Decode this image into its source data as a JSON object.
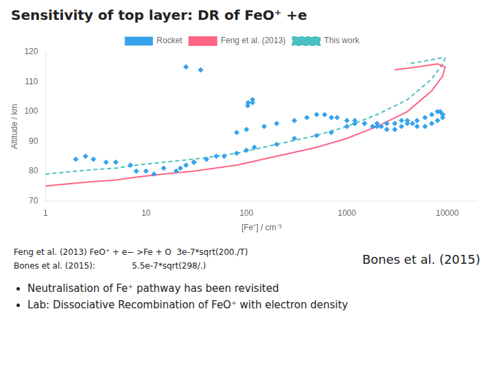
{
  "chart_data": {
    "type": "scatter",
    "title": "Sensitivity of top layer: DR of FeO⁺ +e",
    "x_label": "[Fe⁺] / cm⁻³",
    "y_label": "Altitude / km",
    "log": "x",
    "xlim": [
      1,
      20000
    ],
    "xticks": [
      1,
      10,
      100,
      1000,
      10000
    ],
    "ylim": [
      70,
      120
    ],
    "yticks": [
      70,
      80,
      90,
      100,
      110,
      120
    ],
    "grid": false,
    "legend": "top",
    "series": [
      {
        "name": "Rocket",
        "type": "scatter",
        "marker": "diamond",
        "x": [
          2,
          2.5,
          3,
          4,
          5,
          7,
          8,
          10,
          12,
          15,
          20,
          22,
          25,
          30,
          30,
          40,
          50,
          60,
          80,
          100,
          120,
          200,
          300,
          500,
          700,
          1000,
          1200,
          1500,
          2000,
          2500,
          3000,
          4000,
          5000,
          6000,
          7000,
          8000,
          8500,
          9000,
          9000,
          8000,
          7000,
          6000,
          5000,
          4500,
          4000,
          3500,
          3000,
          2500,
          2000,
          1500,
          1200,
          1000,
          800,
          700,
          600,
          500,
          400,
          300,
          200,
          150,
          100,
          80,
          1800,
          2200,
          3500,
          25,
          35,
          115,
          115,
          103,
          104
        ],
        "values": [
          84,
          85,
          84,
          83,
          83,
          82,
          80,
          80,
          79,
          81,
          80,
          81,
          82,
          83,
          83,
          84,
          85,
          85,
          86,
          87,
          88,
          89,
          91,
          92,
          93,
          95,
          96,
          96,
          95,
          94,
          94,
          96,
          97,
          98,
          99,
          100,
          100,
          99,
          98,
          97,
          96,
          95,
          95,
          96,
          97,
          97,
          96,
          96,
          96,
          96,
          97,
          97,
          98,
          98,
          99,
          99,
          98,
          97,
          96,
          95,
          94,
          93,
          95,
          95,
          95,
          115,
          114,
          103,
          104,
          102,
          103
        ]
      },
      {
        "name": "Feng et al. (2013)",
        "type": "line",
        "line_style": "solid",
        "x": [
          1,
          2,
          3,
          5,
          8,
          15,
          30,
          80,
          200,
          500,
          1000,
          2000,
          4000,
          7000,
          9000,
          9500,
          8000,
          5000,
          3000
        ],
        "values": [
          75,
          76,
          76.5,
          77,
          78,
          79,
          80,
          82,
          85,
          88,
          91,
          95,
          100,
          107,
          112,
          115,
          116,
          115,
          114
        ]
      },
      {
        "name": "This work",
        "type": "line",
        "line_style": "dashed",
        "x": [
          1,
          2,
          3,
          5,
          8,
          15,
          30,
          80,
          200,
          500,
          1000,
          2000,
          4000,
          7000,
          9000,
          9500,
          8500,
          6000,
          4000
        ],
        "values": [
          79,
          80,
          80.5,
          81,
          82,
          83,
          84,
          86,
          89,
          92,
          95,
          99,
          104,
          111,
          116,
          118,
          118,
          117,
          116
        ]
      }
    ],
    "annotations": [
      "Feng et al. (2013) FeO⁺ + e− >Fe + O  3e-7*sqrt(200./T)",
      "Bones et al. (2015):              5.5e-7*sqrt(298/.)",
      "Bones et al. (2015)",
      "Neutralisation of Fe⁺ pathway has been revisited",
      "Lab: Dissociative Recombination of FeO⁺ with electron density"
    ]
  }
}
